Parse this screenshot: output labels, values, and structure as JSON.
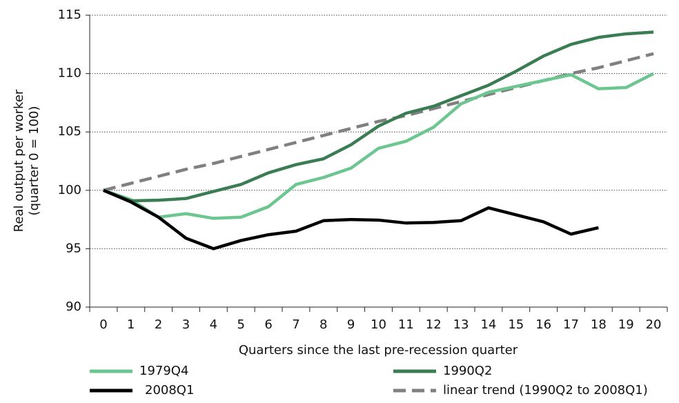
{
  "chart_data": {
    "type": "line",
    "xlabel": "Quarters since the last pre-recession quarter",
    "ylabel": [
      "Real output per worker",
      "(quarter 0 = 100)"
    ],
    "categories": [
      "0",
      "1",
      "2",
      "3",
      "4",
      "5",
      "6",
      "7",
      "8",
      "9",
      "10",
      "11",
      "12",
      "13",
      "14",
      "15",
      "16",
      "17",
      "18",
      "19",
      "20"
    ],
    "ylim": [
      90,
      115
    ],
    "yticks": [
      90,
      95,
      100,
      105,
      110,
      115
    ],
    "grid": true,
    "legend": "bottom",
    "series": [
      {
        "name": "1979Q4",
        "color": "#6cc68f",
        "dash": false,
        "values": [
          100,
          99.2,
          97.7,
          98.0,
          97.6,
          97.7,
          98.6,
          100.5,
          101.1,
          101.9,
          103.6,
          104.2,
          105.4,
          107.4,
          108.4,
          108.9,
          109.4,
          109.9,
          108.7,
          108.8,
          110.0
        ]
      },
      {
        "name": "1990Q2",
        "color": "#3b7d52",
        "dash": false,
        "values": [
          100,
          99.1,
          99.15,
          99.3,
          99.9,
          100.5,
          101.5,
          102.2,
          102.7,
          103.9,
          105.5,
          106.6,
          107.2,
          108.1,
          109.0,
          110.2,
          111.5,
          112.5,
          113.1,
          113.4,
          113.55
        ]
      },
      {
        "name": "2008Q1",
        "color": "#000000",
        "dash": false,
        "values": [
          100,
          99.0,
          97.7,
          95.9,
          95.0,
          95.7,
          96.2,
          96.5,
          97.4,
          97.5,
          97.45,
          97.2,
          97.25,
          97.4,
          98.5,
          97.9,
          97.3,
          96.25,
          96.8,
          null,
          null
        ]
      },
      {
        "name": "linear trend (1990Q2 to 2008Q1)",
        "color": "#808080",
        "dash": true,
        "values": [
          100,
          100.6,
          101.2,
          101.8,
          102.3,
          102.9,
          103.5,
          104.1,
          104.7,
          105.3,
          105.9,
          106.4,
          107.0,
          107.6,
          108.2,
          108.8,
          109.4,
          110.0,
          110.5,
          111.1,
          111.7
        ]
      }
    ]
  }
}
